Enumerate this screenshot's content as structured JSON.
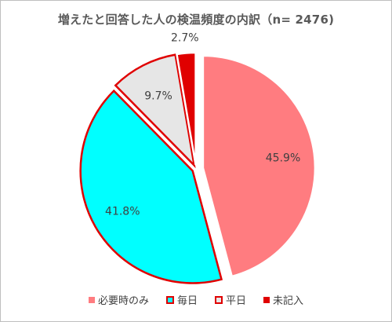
{
  "chart_data": {
    "type": "pie",
    "title": "増えたと回答した人の検温頻度の内訳（n= 2476)",
    "categories": [
      "必要時のみ",
      "毎日",
      "平日",
      "未記入"
    ],
    "values": [
      45.9,
      41.8,
      9.7,
      2.7
    ],
    "labels": [
      "45.9%",
      "41.8%",
      "9.7%",
      "2.7%"
    ],
    "colors": {
      "fill": [
        "#ff7c80",
        "#00ffff",
        "#e6e6e6",
        "#e00000"
      ],
      "stroke": [
        "#ffffff",
        "#e00000",
        "#e00000",
        "#ffffff"
      ]
    },
    "legend_position": "bottom"
  }
}
